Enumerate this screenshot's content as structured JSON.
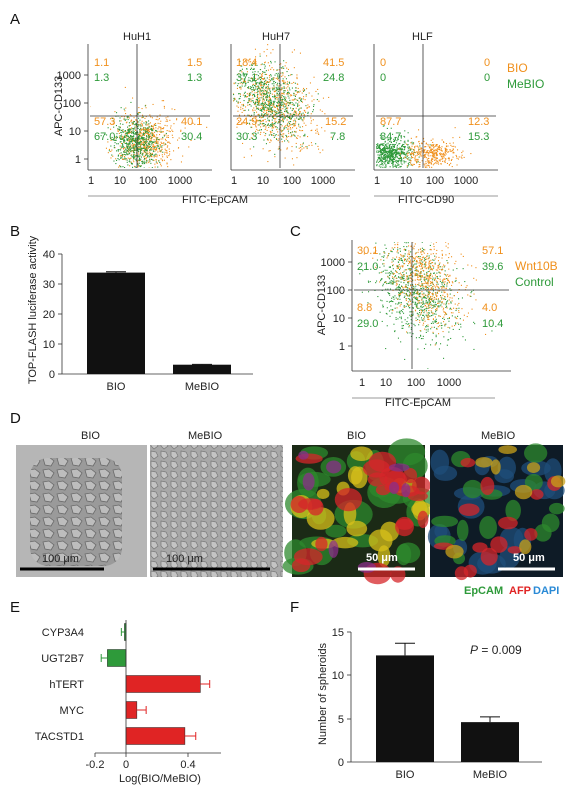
{
  "panels": {
    "A": {
      "label": "A",
      "plots": [
        {
          "title": "HuH1",
          "quadrants_bio": [
            "1.1",
            "1.5",
            "57.3",
            "40.1"
          ],
          "quadrants_mebio": [
            "1.3",
            "1.3",
            "67.0",
            "30.4"
          ]
        },
        {
          "title": "HuH7",
          "quadrants_bio": [
            "18.4",
            "41.5",
            "24.9",
            "15.2"
          ],
          "quadrants_mebio": [
            "37.1",
            "24.8",
            "30.3",
            "7.8"
          ]
        },
        {
          "title": "HLF",
          "quadrants_bio": [
            "0",
            "0",
            "87.7",
            "12.3"
          ],
          "quadrants_mebio": [
            "0",
            "0",
            "84.7",
            "15.3"
          ]
        }
      ],
      "ylabel": "APC-CD133",
      "xlabel_1": "FITC-EpCAM",
      "xlabel_2": "FITC-CD90",
      "ticks": [
        "1",
        "10",
        "100",
        "1000"
      ],
      "legend": {
        "bio": "BIO",
        "mebio": "MeBIO"
      }
    },
    "B": {
      "label": "B",
      "ylabel": "TOP-FLASH luciferase activity",
      "yticks": [
        "0",
        "10",
        "20",
        "30",
        "40"
      ]
    },
    "C": {
      "label": "C",
      "ylabel": "APC-CD133",
      "xlabel": "FITC-EpCAM",
      "quadrants_wnt": [
        "30.1",
        "57.1",
        "8.8",
        "4.0"
      ],
      "quadrants_ctrl": [
        "21.0",
        "39.6",
        "29.0",
        "10.4"
      ],
      "ticks": [
        "1",
        "10",
        "100",
        "1000"
      ],
      "legend": {
        "wnt": "Wnt10B",
        "ctrl": "Control"
      }
    },
    "D": {
      "label": "D",
      "titles": [
        "BIO",
        "MeBIO",
        "BIO",
        "MeBIO"
      ],
      "scale_100": "100 μm",
      "scale_50": "50 μm",
      "legend": {
        "epcam": "EpCAM",
        "afp": "AFP",
        "dapi": "DAPI"
      }
    },
    "E": {
      "label": "E",
      "xlabel": "Log(BIO/MeBIO)",
      "xticks": [
        "-0.2",
        "0",
        "0.4"
      ]
    },
    "F": {
      "label": "F",
      "ylabel": "Number of spheroids",
      "yticks": [
        "0",
        "5",
        "10",
        "15"
      ],
      "pvalue_prefix": "P",
      "pvalue_suffix": " = 0.009"
    }
  },
  "colors": {
    "orange": "#f0901c",
    "green": "#2e9a3a",
    "red": "#e02424",
    "bar": "#111111"
  },
  "chart_data": [
    {
      "type": "bar",
      "panel": "B",
      "categories": [
        "BIO",
        "MeBIO"
      ],
      "values": [
        33.8,
        3.1
      ],
      "errors": [
        0.3,
        0.1
      ],
      "ylabel": "TOP-FLASH luciferase activity",
      "ylim": [
        0,
        40
      ]
    },
    {
      "type": "bar",
      "panel": "E",
      "orientation": "horizontal",
      "categories": [
        "CYP3A4",
        "UGT2B7",
        "hTERT",
        "MYC",
        "TACSTD1"
      ],
      "values": [
        -0.01,
        -0.12,
        0.48,
        0.07,
        0.38
      ],
      "errors": [
        0.02,
        0.04,
        0.06,
        0.06,
        0.07
      ],
      "xlabel": "Log(BIO/MeBIO)",
      "xlim": [
        -0.25,
        0.55
      ]
    },
    {
      "type": "bar",
      "panel": "F",
      "categories": [
        "BIO",
        "MeBIO"
      ],
      "values": [
        12.3,
        4.6
      ],
      "errors": [
        1.4,
        0.6
      ],
      "ylabel": "Number of spheroids",
      "ylim": [
        0,
        15
      ]
    }
  ]
}
